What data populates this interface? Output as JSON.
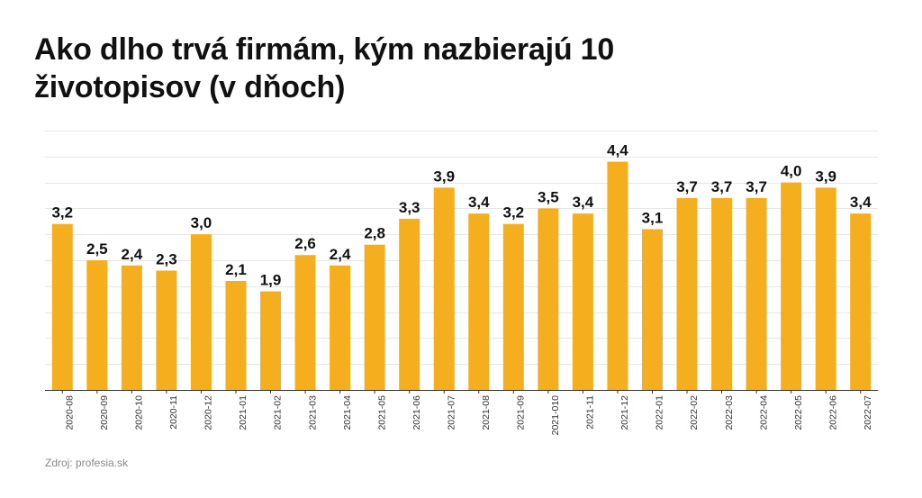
{
  "title": "Ako dlho trvá firmám, kým nazbierajú 10 životopisov (v dňoch)",
  "source": "Zdroj: profesia.sk",
  "colors": {
    "bar": "#F5AE1D",
    "grid": "#e6e6e6",
    "axis": "#333333",
    "label": "#111111"
  },
  "chart_data": {
    "type": "bar",
    "title": "Ako dlho trvá firmám, kým nazbierajú 10 životopisov (v dňoch)",
    "xlabel": "",
    "ylabel": "",
    "ylim": [
      0,
      5
    ],
    "grid": true,
    "categories": [
      "2020-08",
      "2020-09",
      "2020-10",
      "2020-11",
      "2020-12",
      "2021-01",
      "2021-02",
      "2021-03",
      "2021-04",
      "2021-05",
      "2021-06",
      "2021-07",
      "2021-08",
      "2021-09",
      "2021-010",
      "2021-11",
      "2021-12",
      "2022-01",
      "2022-02",
      "2022-03",
      "2022-04",
      "2022-05",
      "2022-06",
      "2022-07"
    ],
    "values": [
      3.2,
      2.5,
      2.4,
      2.3,
      3.0,
      2.1,
      1.9,
      2.6,
      2.4,
      2.8,
      3.3,
      3.9,
      3.4,
      3.2,
      3.5,
      3.4,
      4.4,
      3.1,
      3.7,
      3.7,
      3.7,
      4.0,
      3.9,
      3.4
    ],
    "value_labels": [
      "3,2",
      "2,5",
      "2,4",
      "2,3",
      "3,0",
      "2,1",
      "1,9",
      "2,6",
      "2,4",
      "2,8",
      "3,3",
      "3,9",
      "3,4",
      "3,2",
      "3,5",
      "3,4",
      "4,4",
      "3,1",
      "3,7",
      "3,7",
      "3,7",
      "4,0",
      "3,9",
      "3,4"
    ]
  }
}
